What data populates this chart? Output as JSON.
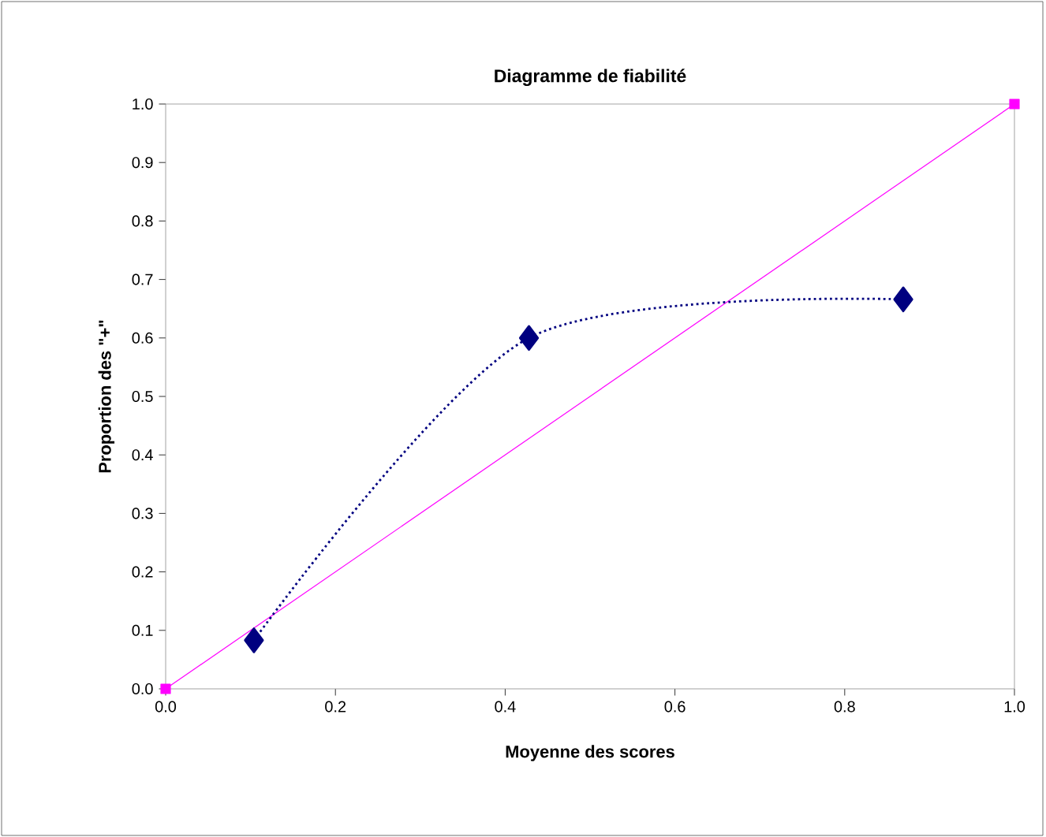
{
  "chart_data": {
    "type": "line",
    "title": "Diagramme de fiabilité",
    "xlabel": "Moyenne des scores",
    "ylabel": "Proportion des \"+\"",
    "series": [
      {
        "color": "#ff00ff",
        "marker": "square",
        "line_style": "solid",
        "x": [
          0,
          1
        ],
        "values": [
          0,
          1
        ]
      },
      {
        "color": "#000080",
        "marker": "diamond",
        "line_style": "dotted",
        "x": [
          0.104,
          0.428,
          0.869
        ],
        "values": [
          0.083,
          0.6,
          0.666
        ]
      }
    ],
    "xlim": [
      0,
      1
    ],
    "ylim": [
      0,
      1
    ],
    "xticks": [
      {
        "value": 0,
        "label": "0.0"
      },
      {
        "value": 0.2,
        "label": "0.2"
      },
      {
        "value": 0.4,
        "label": "0.4"
      },
      {
        "value": 0.6,
        "label": "0.6"
      },
      {
        "value": 0.8,
        "label": "0.8"
      },
      {
        "value": 1,
        "label": "1.0"
      }
    ],
    "yticks": [
      {
        "value": 0,
        "label": "0.0"
      },
      {
        "value": 0.1,
        "label": "0.1"
      },
      {
        "value": 0.2,
        "label": "0.2"
      },
      {
        "value": 0.3,
        "label": "0.3"
      },
      {
        "value": 0.4,
        "label": "0.4"
      },
      {
        "value": 0.5,
        "label": "0.5"
      },
      {
        "value": 0.6,
        "label": "0.6"
      },
      {
        "value": 0.7,
        "label": "0.7"
      },
      {
        "value": 0.8,
        "label": "0.8"
      },
      {
        "value": 0.9,
        "label": "0.9"
      },
      {
        "value": 1,
        "label": "1.0"
      }
    ]
  }
}
